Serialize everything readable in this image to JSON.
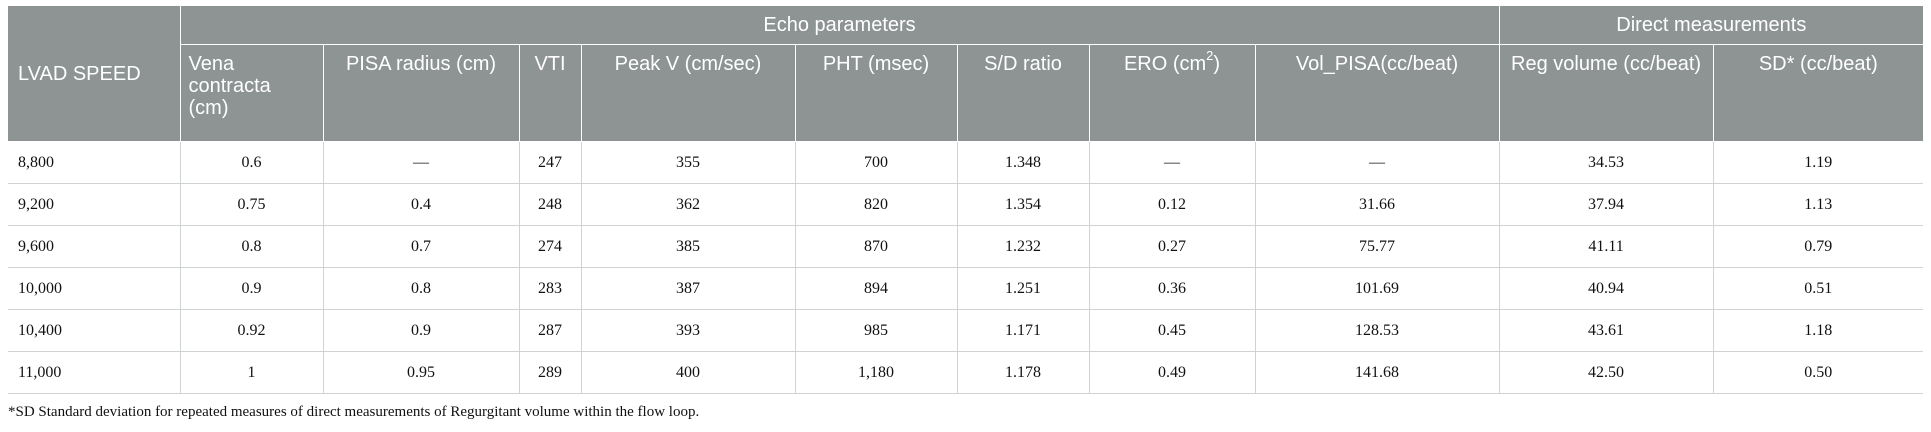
{
  "table": {
    "group_headers": {
      "echo": "Echo parameters",
      "direct": "Direct measurements"
    },
    "columns": {
      "lvad_speed": "LVAD SPEED",
      "vena_contracta": "Vena contracta (cm)",
      "pisa_radius": "PISA radius (cm)",
      "vti": "VTI",
      "peak_v": "Peak V (cm/sec)",
      "pht": "PHT (msec)",
      "sd_ratio": "S/D ratio",
      "ero_prefix": "ERO (cm",
      "ero_sup": "2",
      "ero_suffix": ")",
      "vol_pisa": "Vol_PISA(cc/beat)",
      "reg_volume": "Reg volume (cc/beat)",
      "sd": "SD* (cc/beat)"
    },
    "rows": [
      [
        "8,800",
        "0.6",
        "—",
        "247",
        "355",
        "700",
        "1.348",
        "—",
        "—",
        "34.53",
        "1.19"
      ],
      [
        "9,200",
        "0.75",
        "0.4",
        "248",
        "362",
        "820",
        "1.354",
        "0.12",
        "31.66",
        "37.94",
        "1.13"
      ],
      [
        "9,600",
        "0.8",
        "0.7",
        "274",
        "385",
        "870",
        "1.232",
        "0.27",
        "75.77",
        "41.11",
        "0.79"
      ],
      [
        "10,000",
        "0.9",
        "0.8",
        "283",
        "387",
        "894",
        "1.251",
        "0.36",
        "101.69",
        "40.94",
        "0.51"
      ],
      [
        "10,400",
        "0.92",
        "0.9",
        "287",
        "393",
        "985",
        "1.171",
        "0.45",
        "128.53",
        "43.61",
        "1.18"
      ],
      [
        "11,000",
        "1",
        "0.95",
        "289",
        "400",
        "1,180",
        "1.178",
        "0.49",
        "141.68",
        "42.50",
        "0.50"
      ]
    ]
  },
  "footnote": "*SD Standard deviation for repeated measures of direct measurements of Regurgitant volume within the flow loop."
}
